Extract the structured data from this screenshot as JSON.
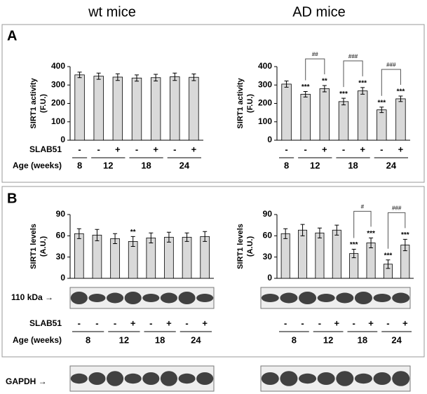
{
  "column_titles": [
    "wt mice",
    "AD mice"
  ],
  "panels": [
    "A",
    "B"
  ],
  "gapdh_label": "GAPDH →",
  "chart_data": [
    {
      "type": "bar",
      "ylabel": [
        "SIRT1 activity",
        "(F.U.)"
      ],
      "ylim": [
        0,
        400
      ],
      "yticks": [
        0,
        100,
        200,
        300,
        400
      ],
      "color": "#d9d9d9",
      "values": [
        355,
        348,
        343,
        338,
        340,
        345,
        342
      ],
      "errors": [
        15,
        17,
        18,
        17,
        18,
        20,
        18
      ],
      "stars": [
        null,
        null,
        null,
        null,
        null,
        null,
        null
      ],
      "comparisons": [],
      "treatment": [
        "-",
        "-",
        "+",
        "-",
        "+",
        "-",
        "+"
      ],
      "groups": [
        {
          "label": "8",
          "count": 1
        },
        {
          "label": "12",
          "count": 2
        },
        {
          "label": "18",
          "count": 2
        },
        {
          "label": "24",
          "count": 2
        }
      ],
      "row_labels": [
        "SLAB51",
        "Age (weeks)"
      ]
    },
    {
      "type": "bar",
      "ylabel": [
        "SIRT1 activity",
        "(F.U.)"
      ],
      "ylim": [
        0,
        400
      ],
      "yticks": [
        0,
        100,
        200,
        300,
        400
      ],
      "color": "#d9d9d9",
      "values": [
        305,
        250,
        280,
        210,
        268,
        165,
        225
      ],
      "errors": [
        17,
        15,
        17,
        18,
        18,
        15,
        15
      ],
      "stars": [
        null,
        "***",
        "**",
        "***",
        "***",
        "***",
        "***"
      ],
      "comparisons": [
        {
          "label": "##",
          "bars": [
            1,
            2
          ]
        },
        {
          "label": "###",
          "bars": [
            3,
            4
          ]
        },
        {
          "label": "###",
          "bars": [
            5,
            6
          ]
        }
      ],
      "treatment": [
        "-",
        "-",
        "+",
        "-",
        "+",
        "-",
        "+"
      ],
      "groups": [
        {
          "label": "8",
          "count": 1
        },
        {
          "label": "12",
          "count": 2
        },
        {
          "label": "18",
          "count": 2
        },
        {
          "label": "24",
          "count": 2
        }
      ]
    },
    {
      "type": "bar",
      "ylabel": [
        "SIRT1 levels",
        "(A.U.)"
      ],
      "ylim": [
        0,
        90
      ],
      "yticks": [
        0,
        30,
        60,
        90
      ],
      "color": "#d9d9d9",
      "values": [
        63,
        61,
        56,
        52,
        57,
        58,
        58,
        59
      ],
      "errors": [
        7,
        8,
        7,
        7,
        7,
        7,
        6,
        7
      ],
      "stars": [
        null,
        null,
        null,
        "**",
        null,
        null,
        null,
        null
      ],
      "comparisons": [],
      "treatment": [
        "-",
        "-",
        "-",
        "+",
        "-",
        "+",
        "-",
        "+"
      ],
      "groups": [
        {
          "label": "8",
          "count": 2
        },
        {
          "label": "12",
          "count": 2
        },
        {
          "label": "18",
          "count": 2
        },
        {
          "label": "24",
          "count": 2
        }
      ],
      "row_labels": [
        "SLAB51",
        "Age (weeks)"
      ],
      "blot_label": "110 kDa →"
    },
    {
      "type": "bar",
      "ylabel": [
        "SIRT1 levels",
        "(A.U.)"
      ],
      "ylim": [
        0,
        90
      ],
      "yticks": [
        0,
        30,
        60,
        90
      ],
      "color": "#d9d9d9",
      "values": [
        63,
        68,
        64,
        68,
        35,
        50,
        20,
        47
      ],
      "errors": [
        7,
        8,
        7,
        7,
        6,
        7,
        6,
        8
      ],
      "stars": [
        null,
        null,
        null,
        null,
        "***",
        "***",
        "***",
        "***"
      ],
      "comparisons": [
        {
          "label": "#",
          "bars": [
            4,
            5
          ]
        },
        {
          "label": "###",
          "bars": [
            6,
            7
          ]
        }
      ],
      "treatment": [
        "-",
        "-",
        "-",
        "+",
        "-",
        "+",
        "-",
        "+"
      ],
      "groups": [
        {
          "label": "8",
          "count": 2
        },
        {
          "label": "12",
          "count": 2
        },
        {
          "label": "18",
          "count": 2
        },
        {
          "label": "24",
          "count": 2
        }
      ]
    }
  ]
}
